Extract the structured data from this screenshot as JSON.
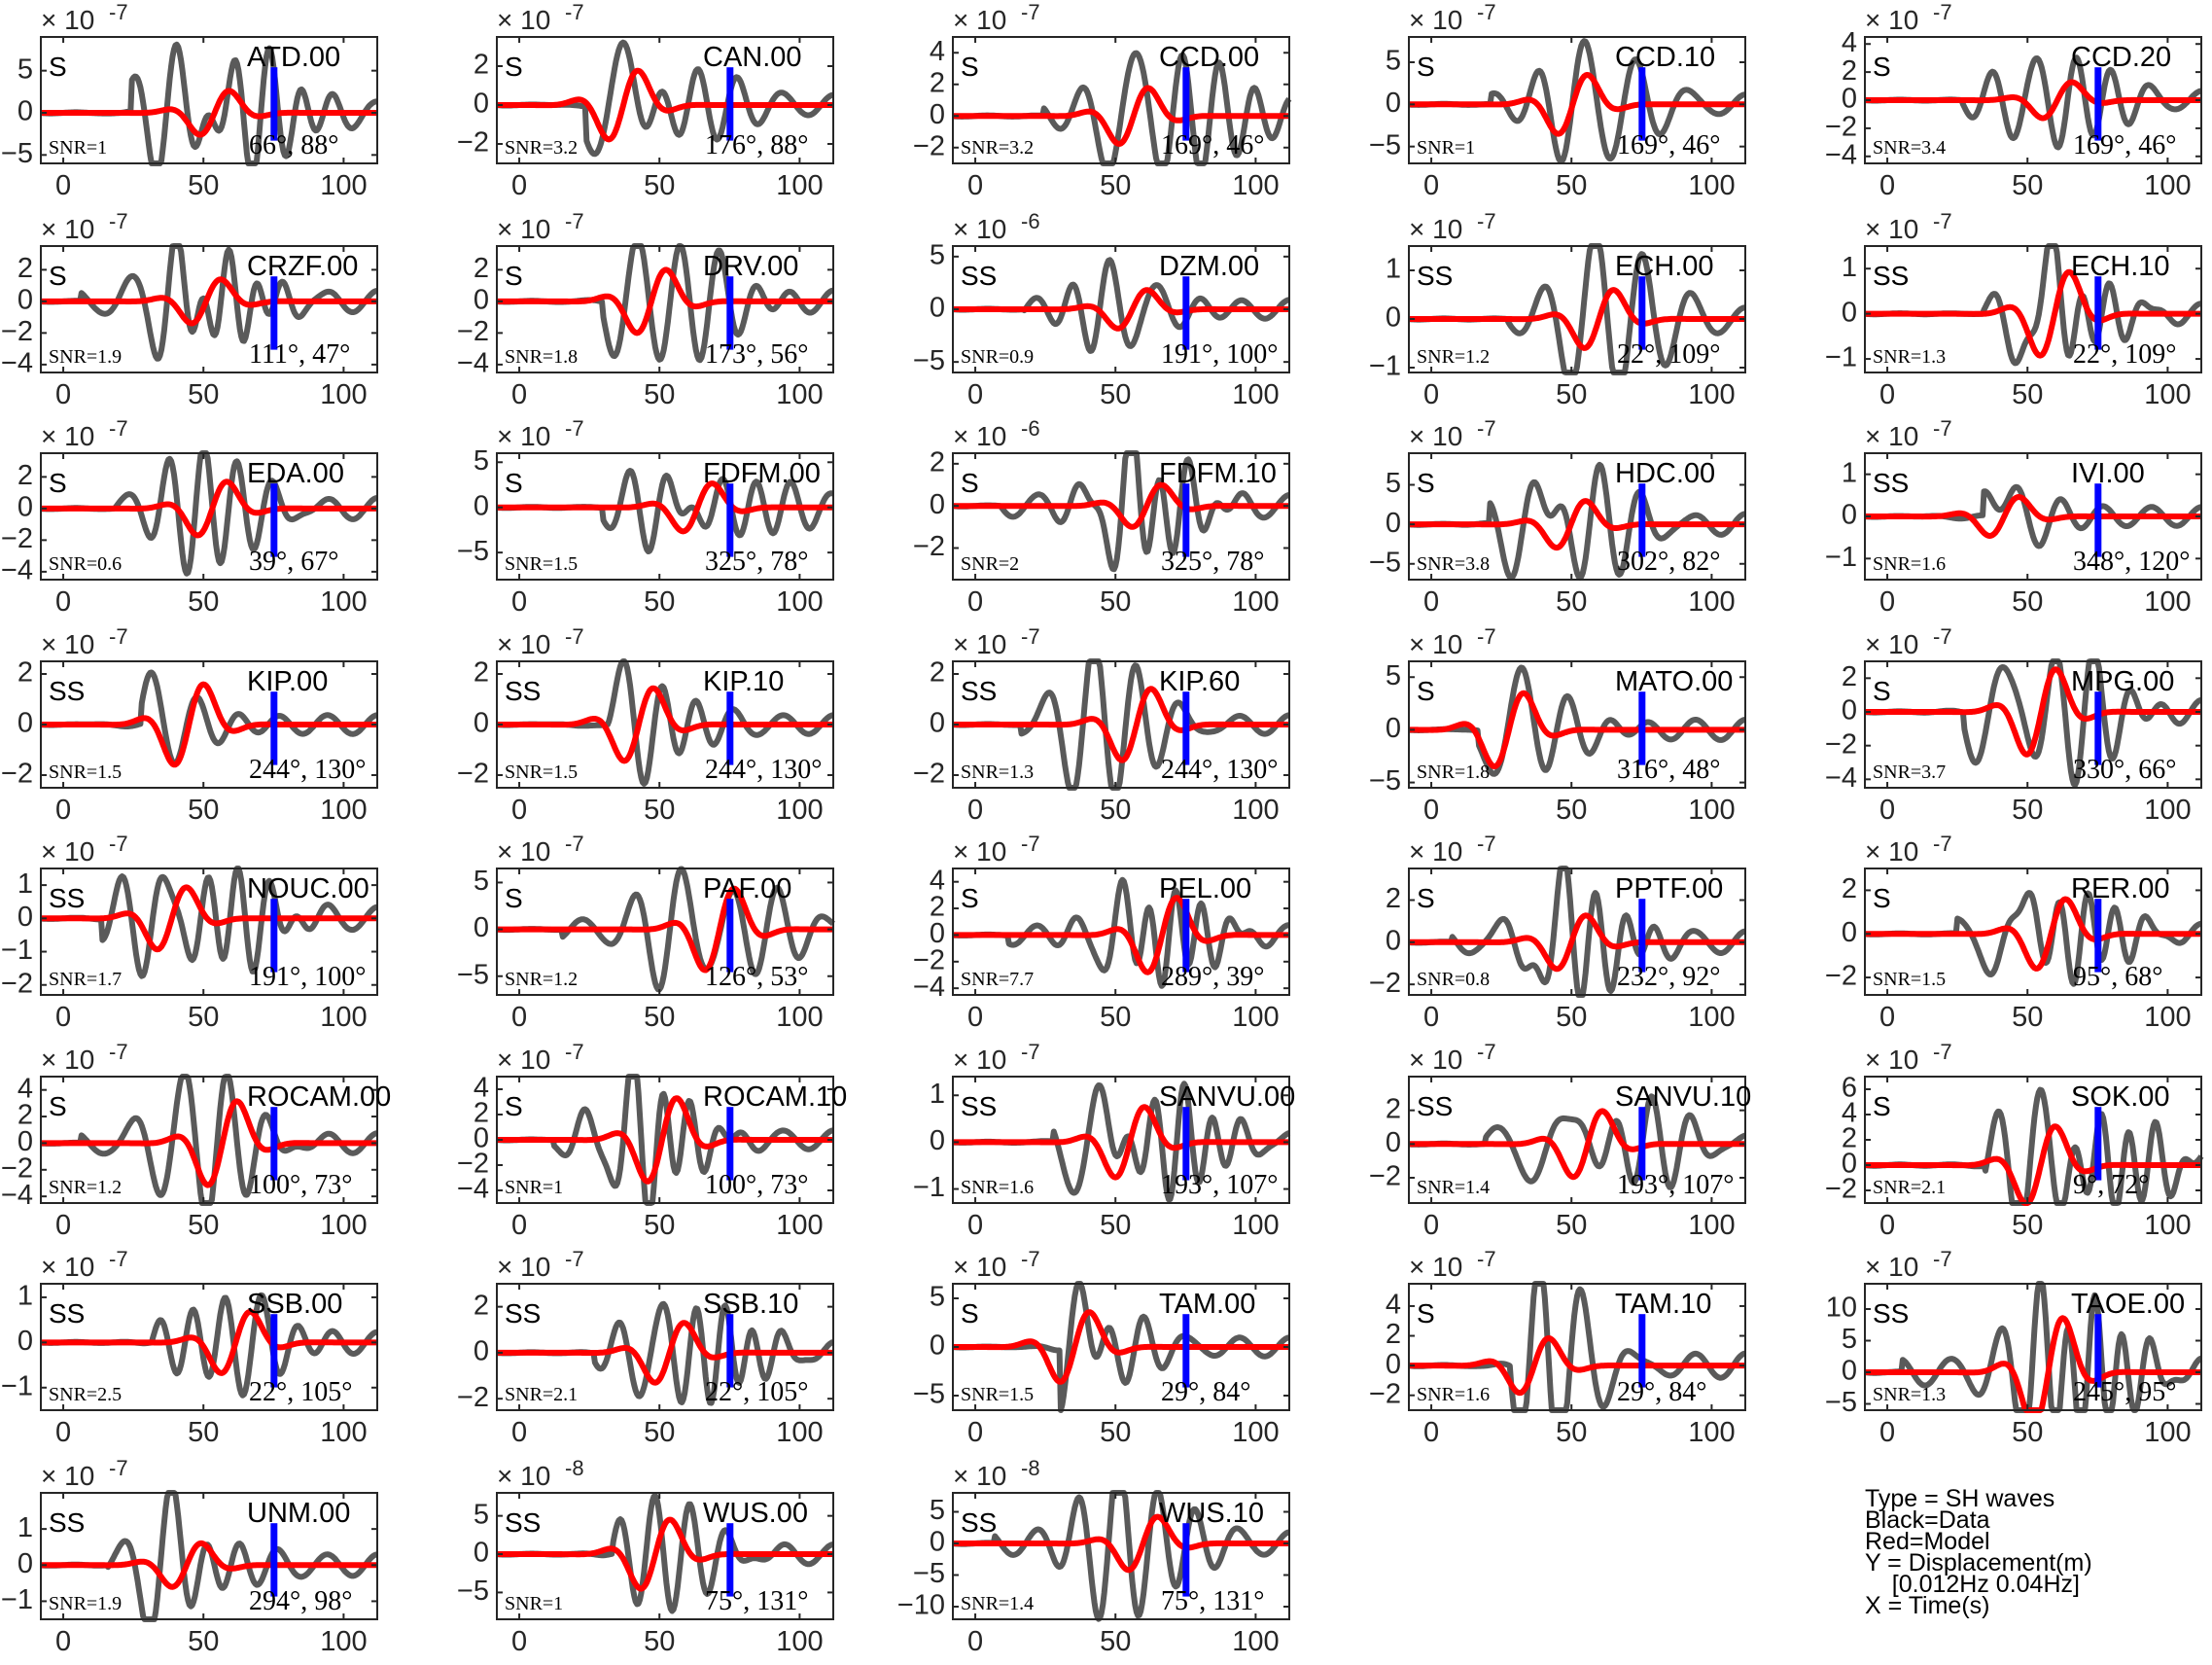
{
  "chart_data": {
    "type": "line",
    "x_ticks": [
      0,
      50,
      100
    ],
    "xlim": [
      -8,
      112
    ],
    "colors": {
      "data": "#5a5a5a",
      "model": "#ff0000",
      "marker": "#0000ff"
    },
    "panels": [
      {
        "station": "ATD.00",
        "phase": "S",
        "snr": "SNR=1",
        "az": "66°, 88°",
        "exponent": "-7",
        "yticks": [
          5,
          0,
          -5
        ],
        "ylim": [
          -6,
          9
        ]
      },
      {
        "station": "CAN.00",
        "phase": "S",
        "snr": "SNR=3.2",
        "az": "176°, 88°",
        "exponent": "-7",
        "yticks": [
          2,
          0,
          -2
        ],
        "ylim": [
          -3,
          3.5
        ]
      },
      {
        "station": "CCD.00",
        "phase": "S",
        "snr": "SNR=3.2",
        "az": "169°, 46°",
        "exponent": "-7",
        "yticks": [
          4,
          2,
          0,
          -2
        ],
        "ylim": [
          -3,
          5
        ]
      },
      {
        "station": "CCD.10",
        "phase": "S",
        "snr": "SNR=1",
        "az": "169°, 46°",
        "exponent": "-7",
        "yticks": [
          5,
          0,
          -5
        ],
        "ylim": [
          -7,
          8
        ]
      },
      {
        "station": "CCD.20",
        "phase": "S",
        "snr": "SNR=3.4",
        "az": "169°, 46°",
        "exponent": "-7",
        "yticks": [
          4,
          2,
          0,
          -2,
          -4
        ],
        "ylim": [
          -4.5,
          4.5
        ]
      },
      {
        "station": "CRZF.00",
        "phase": "S",
        "snr": "SNR=1.9",
        "az": "111°, 47°",
        "exponent": "-7",
        "yticks": [
          2,
          0,
          -2,
          -4
        ],
        "ylim": [
          -4.5,
          3.5
        ]
      },
      {
        "station": "DRV.00",
        "phase": "S",
        "snr": "SNR=1.8",
        "az": "173°, 56°",
        "exponent": "-7",
        "yticks": [
          2,
          0,
          -2,
          -4
        ],
        "ylim": [
          -4.5,
          3.5
        ]
      },
      {
        "station": "DZM.00",
        "phase": "SS",
        "snr": "SNR=0.9",
        "az": "191°, 100°",
        "exponent": "-6",
        "yticks": [
          5,
          0,
          -5
        ],
        "ylim": [
          -6,
          6
        ]
      },
      {
        "station": "ECH.00",
        "phase": "SS",
        "snr": "SNR=1.2",
        "az": "22°, 109°",
        "exponent": "-7",
        "yticks": [
          1,
          0,
          -1
        ],
        "ylim": [
          -1.1,
          1.5
        ]
      },
      {
        "station": "ECH.10",
        "phase": "SS",
        "snr": "SNR=1.3",
        "az": "22°, 109°",
        "exponent": "-7",
        "yticks": [
          1,
          0,
          -1
        ],
        "ylim": [
          -1.3,
          1.5
        ]
      },
      {
        "station": "EDA.00",
        "phase": "S",
        "snr": "SNR=0.6",
        "az": "39°, 67°",
        "exponent": "-7",
        "yticks": [
          2,
          0,
          -2,
          -4
        ],
        "ylim": [
          -4.5,
          3.5
        ]
      },
      {
        "station": "FDFM.00",
        "phase": "S",
        "snr": "SNR=1.5",
        "az": "325°, 78°",
        "exponent": "-7",
        "yticks": [
          5,
          0,
          -5
        ],
        "ylim": [
          -8,
          6
        ]
      },
      {
        "station": "FDFM.10",
        "phase": "S",
        "snr": "SNR=2",
        "az": "325°, 78°",
        "exponent": "-6",
        "yticks": [
          2,
          0,
          -2
        ],
        "ylim": [
          -3.5,
          2.5
        ]
      },
      {
        "station": "HDC.00",
        "phase": "S",
        "snr": "SNR=3.8",
        "az": "302°, 82°",
        "exponent": "-7",
        "yticks": [
          5,
          0,
          -5
        ],
        "ylim": [
          -7,
          9
        ]
      },
      {
        "station": "IVI.00",
        "phase": "SS",
        "snr": "SNR=1.6",
        "az": "348°, 120°",
        "exponent": "-7",
        "yticks": [
          1,
          0,
          -1
        ],
        "ylim": [
          -1.5,
          1.5
        ]
      },
      {
        "station": "KIP.00",
        "phase": "SS",
        "snr": "SNR=1.5",
        "az": "244°, 130°",
        "exponent": "-7",
        "yticks": [
          2,
          0,
          -2
        ],
        "ylim": [
          -2.5,
          2.5
        ]
      },
      {
        "station": "KIP.10",
        "phase": "SS",
        "snr": "SNR=1.5",
        "az": "244°, 130°",
        "exponent": "-7",
        "yticks": [
          2,
          0,
          -2
        ],
        "ylim": [
          -2.5,
          2.5
        ]
      },
      {
        "station": "KIP.60",
        "phase": "SS",
        "snr": "SNR=1.3",
        "az": "244°, 130°",
        "exponent": "-7",
        "yticks": [
          2,
          0,
          -2
        ],
        "ylim": [
          -2.5,
          2.5
        ]
      },
      {
        "station": "MATO.00",
        "phase": "S",
        "snr": "SNR=1.8",
        "az": "316°, 48°",
        "exponent": "-7",
        "yticks": [
          5,
          0,
          -5
        ],
        "ylim": [
          -5.5,
          6.5
        ]
      },
      {
        "station": "MPG.00",
        "phase": "S",
        "snr": "SNR=3.7",
        "az": "330°, 66°",
        "exponent": "-7",
        "yticks": [
          2,
          0,
          -2,
          -4
        ],
        "ylim": [
          -4.5,
          3
        ]
      },
      {
        "station": "NOUC.00",
        "phase": "SS",
        "snr": "SNR=1.7",
        "az": "191°, 100°",
        "exponent": "-7",
        "yticks": [
          1,
          0,
          -1,
          -2
        ],
        "ylim": [
          -2.3,
          1.5
        ]
      },
      {
        "station": "PAF.00",
        "phase": "S",
        "snr": "SNR=1.2",
        "az": "126°, 53°",
        "exponent": "-7",
        "yticks": [
          5,
          0,
          -5
        ],
        "ylim": [
          -7,
          6.5
        ]
      },
      {
        "station": "PEL.00",
        "phase": "S",
        "snr": "SNR=7.7",
        "az": "289°, 39°",
        "exponent": "-7",
        "yticks": [
          4,
          2,
          0,
          -2,
          -4
        ],
        "ylim": [
          -4.5,
          5
        ]
      },
      {
        "station": "PPTF.00",
        "phase": "S",
        "snr": "SNR=0.8",
        "az": "232°, 92°",
        "exponent": "-7",
        "yticks": [
          2,
          0,
          -2
        ],
        "ylim": [
          -2.5,
          3.5
        ]
      },
      {
        "station": "RER.00",
        "phase": "S",
        "snr": "SNR=1.5",
        "az": "95°, 68°",
        "exponent": "-7",
        "yticks": [
          2,
          0,
          -2
        ],
        "ylim": [
          -2.8,
          3
        ]
      },
      {
        "station": "ROCAM.00",
        "phase": "S",
        "snr": "SNR=1.2",
        "az": "100°, 73°",
        "exponent": "-7",
        "yticks": [
          4,
          2,
          0,
          -2,
          -4
        ],
        "ylim": [
          -4.5,
          5
        ]
      },
      {
        "station": "ROCAM.10",
        "phase": "S",
        "snr": "SNR=1",
        "az": "100°, 73°",
        "exponent": "-7",
        "yticks": [
          4,
          2,
          0,
          -2,
          -4
        ],
        "ylim": [
          -5,
          5
        ]
      },
      {
        "station": "SANVU.00",
        "phase": "SS",
        "snr": "SNR=1.6",
        "az": "193°, 107°",
        "exponent": "-7",
        "yticks": [
          1,
          0,
          -1
        ],
        "ylim": [
          -1.3,
          1.4
        ]
      },
      {
        "station": "SANVU.10",
        "phase": "SS",
        "snr": "SNR=1.4",
        "az": "193°, 107°",
        "exponent": "-7",
        "yticks": [
          2,
          0,
          -2
        ],
        "ylim": [
          -3.5,
          4
        ]
      },
      {
        "station": "SOK.00",
        "phase": "S",
        "snr": "SNR=2.1",
        "az": "9°, 72°",
        "exponent": "-7",
        "yticks": [
          6,
          4,
          2,
          0,
          -2
        ],
        "ylim": [
          -3,
          7
        ]
      },
      {
        "station": "SSB.00",
        "phase": "SS",
        "snr": "SNR=2.5",
        "az": "22°, 105°",
        "exponent": "-7",
        "yticks": [
          1,
          0,
          -1
        ],
        "ylim": [
          -1.5,
          1.3
        ]
      },
      {
        "station": "SSB.10",
        "phase": "SS",
        "snr": "SNR=2.1",
        "az": "22°, 105°",
        "exponent": "-7",
        "yticks": [
          2,
          0,
          -2
        ],
        "ylim": [
          -2.5,
          3
        ]
      },
      {
        "station": "TAM.00",
        "phase": "S",
        "snr": "SNR=1.5",
        "az": "29°, 84°",
        "exponent": "-7",
        "yticks": [
          5,
          0,
          -5
        ],
        "ylim": [
          -6.5,
          6.5
        ]
      },
      {
        "station": "TAM.10",
        "phase": "S",
        "snr": "SNR=1.6",
        "az": "29°, 84°",
        "exponent": "-7",
        "yticks": [
          4,
          2,
          0,
          -2
        ],
        "ylim": [
          -3,
          5.5
        ]
      },
      {
        "station": "TAOE.00",
        "phase": "SS",
        "snr": "SNR=1.3",
        "az": "245°, 95°",
        "exponent": "-7",
        "yticks": [
          10,
          5,
          0,
          -5
        ],
        "ylim": [
          -6,
          14
        ]
      },
      {
        "station": "UNM.00",
        "phase": "SS",
        "snr": "SNR=1.9",
        "az": "294°, 98°",
        "exponent": "-7",
        "yticks": [
          1,
          0,
          -1
        ],
        "ylim": [
          -1.5,
          2
        ]
      },
      {
        "station": "WUS.00",
        "phase": "SS",
        "snr": "SNR=1",
        "az": "75°, 131°",
        "exponent": "-8",
        "yticks": [
          5,
          0,
          -5
        ],
        "ylim": [
          -8.5,
          8
        ]
      },
      {
        "station": "WUS.10",
        "phase": "SS",
        "snr": "SNR=1.4",
        "az": "75°, 131°",
        "exponent": "-8",
        "yticks": [
          5,
          0,
          -5,
          -10
        ],
        "ylim": [
          -12,
          8
        ]
      }
    ]
  },
  "legend": {
    "lines": [
      "Type = SH waves",
      "Black=Data",
      "Red=Model",
      "Y = Displacement(m)",
      "    [0.012Hz 0.04Hz]",
      "X = Time(s)"
    ]
  }
}
